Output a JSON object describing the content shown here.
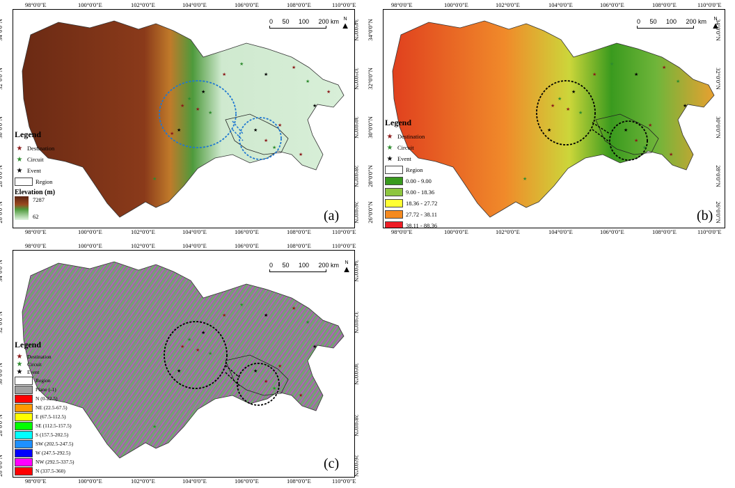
{
  "lon_ticks": [
    "98°0'0\"E",
    "100°0'0\"E",
    "102°0'0\"E",
    "104°0'0\"E",
    "106°0'0\"E",
    "108°0'0\"E",
    "110°0'0\"E"
  ],
  "lat_ticks": [
    "34°0'0\"N",
    "32°0'0\"N",
    "30°0'0\"N",
    "28°0'0\"N",
    "26°0'0\"N"
  ],
  "scale": {
    "zero": "0",
    "fifty": "50",
    "hundred": "100",
    "end": "200 km"
  },
  "north": "N",
  "panels": {
    "a": {
      "tag": "(a)",
      "legend_title": "Legend",
      "destination": "Destination",
      "circuit": "Circuit",
      "event": "Event",
      "region": "Region",
      "elev_title": "Elevation (m)",
      "elev_max": "7287",
      "elev_min": "62"
    },
    "b": {
      "tag": "(b)",
      "legend_title": "Legend",
      "destination": "Destination",
      "circuit": "Circuit",
      "event": "Event",
      "region": "Region",
      "classes": [
        {
          "label": "0.00 - 9.00",
          "color": "#3a9a1e"
        },
        {
          "label": "9.00 - 18.36",
          "color": "#8ec63f"
        },
        {
          "label": "18.36 - 27.72",
          "color": "#ffff33"
        },
        {
          "label": "27.72 - 38.11",
          "color": "#f58a1f"
        },
        {
          "label": "38.11 - 88.36",
          "color": "#ee1c24"
        }
      ]
    },
    "c": {
      "tag": "(c)",
      "legend_title": "Legend",
      "destination": "Destination",
      "circuit": "Circuit",
      "event": "Event",
      "region": "Region",
      "classes": [
        {
          "label": "Plane (-1)",
          "color": "#a0a0a0"
        },
        {
          "label": "N (0-22.5)",
          "color": "#ff0000"
        },
        {
          "label": "NE (22.5-67.5)",
          "color": "#ff9a00"
        },
        {
          "label": "E (67.5-112.5)",
          "color": "#ffff00"
        },
        {
          "label": "SE (112.5-157.5)",
          "color": "#00ff00"
        },
        {
          "label": "S (157.5-202.5)",
          "color": "#00ffff"
        },
        {
          "label": "SW (202.5-247.5)",
          "color": "#1e90ff"
        },
        {
          "label": "W (247.5-292.5)",
          "color": "#0000ff"
        },
        {
          "label": "NW (292.5-337.5)",
          "color": "#ff00ff"
        },
        {
          "label": "N (337.5-360)",
          "color": "#ff0000"
        }
      ]
    }
  },
  "colors": {
    "destination": "#8b1a1a",
    "circuit": "#2e8b2e",
    "event": "#000000",
    "circle_a": "#1f78d1",
    "circle_bc": "#000000"
  }
}
